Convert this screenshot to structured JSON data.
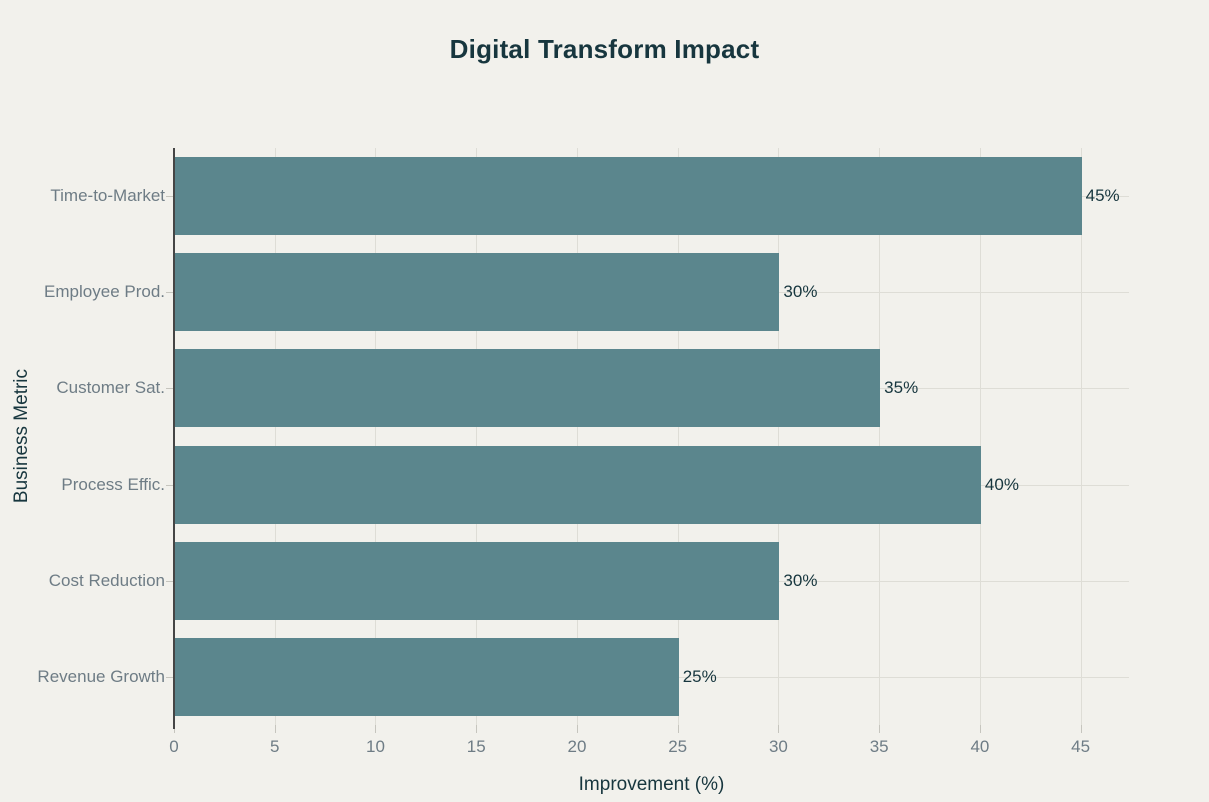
{
  "chart_data": {
    "type": "bar",
    "orientation": "horizontal",
    "title": "Digital Transform Impact",
    "xlabel": "Improvement (%)",
    "ylabel": "Business Metric",
    "categories": [
      "Time-to-Market",
      "Employee Prod.",
      "Customer Sat.",
      "Process Effic.",
      "Cost Reduction",
      "Revenue Growth"
    ],
    "values": [
      45,
      30,
      35,
      40,
      30,
      25
    ],
    "value_labels": [
      "45%",
      "30%",
      "35%",
      "40%",
      "30%",
      "25%"
    ],
    "x_ticks": [
      0,
      5,
      10,
      15,
      20,
      25,
      30,
      35,
      40,
      45
    ],
    "xlim": [
      0,
      47.4
    ],
    "grid": true,
    "legend": "none",
    "colors": {
      "background": "#f2f1ec",
      "bar": "#5b868d",
      "title_text": "#17363e",
      "axis_label_text": "#17363e",
      "value_label_text": "#17363e",
      "tick_label_text": "#6e7c85",
      "gridline": "#deddd6",
      "axis_spine": "#454545",
      "tick_mark": "#c6c5be"
    }
  }
}
